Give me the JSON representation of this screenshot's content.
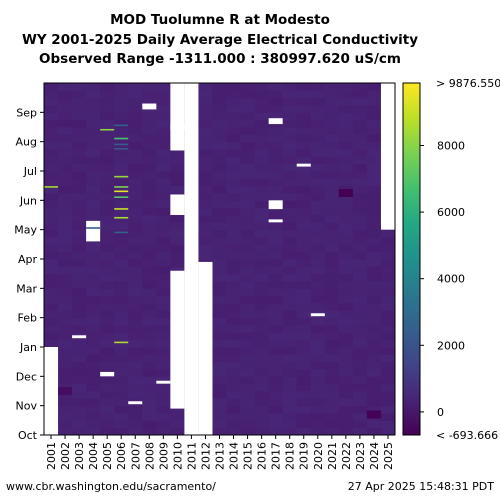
{
  "chart_data": {
    "type": "heatmap",
    "title_lines": [
      "MOD Tuolumne R at Modesto",
      "WY 2001-2025 Daily Average Electrical Conductivity",
      "Observed Range -1311.000 : 380997.620 uS/cm"
    ],
    "x_categories": [
      "2001",
      "2002",
      "2003",
      "2004",
      "2005",
      "2006",
      "2007",
      "2008",
      "2009",
      "2010",
      "2011",
      "2012",
      "2013",
      "2014",
      "2015",
      "2016",
      "2017",
      "2018",
      "2019",
      "2020",
      "2021",
      "2022",
      "2023",
      "2024",
      "2025"
    ],
    "y_categories": [
      "Oct",
      "Nov",
      "Dec",
      "Jan",
      "Feb",
      "Mar",
      "Apr",
      "May",
      "Jun",
      "Jul",
      "Aug",
      "Sep"
    ],
    "colorbar": {
      "colormap": "viridis",
      "vmin": -693.666,
      "vmax": 9876.55,
      "ticks": [
        0,
        2000,
        4000,
        6000,
        8000
      ],
      "tick_labels": [
        "0",
        "2000",
        "4000",
        "6000",
        "8000"
      ],
      "min_label": "< -693.666",
      "max_label": "> 9876.550"
    },
    "base_value_range": [
      180,
      420
    ],
    "missing_periods": [
      {
        "year": "2001",
        "from_month": 0,
        "to_month": 3.0
      },
      {
        "year": "2010",
        "from_month": 9.7,
        "to_month": 12
      },
      {
        "year": "2010",
        "from_month": 7.5,
        "to_month": 8.2
      },
      {
        "year": "2010",
        "from_month": 0.9,
        "to_month": 5.6
      },
      {
        "year": "2011",
        "from_month": 0,
        "to_month": 12
      },
      {
        "year": "2012",
        "from_month": 0,
        "to_month": 5.9
      },
      {
        "year": "2025",
        "from_month": 7.0,
        "to_month": 12
      }
    ],
    "missing_short": [
      {
        "year": "2004",
        "from_month": 6.6,
        "to_month": 7.3
      },
      {
        "year": "2008",
        "from_month": 11.1,
        "to_month": 11.3
      },
      {
        "year": "2010",
        "from_month": 10.4,
        "to_month": 10.6
      },
      {
        "year": "2017",
        "from_month": 10.6,
        "to_month": 10.8
      },
      {
        "year": "2017",
        "from_month": 7.7,
        "to_month": 8.0
      },
      {
        "year": "2017",
        "from_month": 7.25,
        "to_month": 7.35
      },
      {
        "year": "2019",
        "from_month": 9.15,
        "to_month": 9.25
      },
      {
        "year": "2020",
        "from_month": 4.05,
        "to_month": 4.15
      },
      {
        "year": "2005",
        "from_month": 2.0,
        "to_month": 2.15
      },
      {
        "year": "2007",
        "from_month": 1.05,
        "to_month": 1.15
      },
      {
        "year": "2009",
        "from_month": 1.75,
        "to_month": 1.85
      },
      {
        "year": "2003",
        "from_month": 3.3,
        "to_month": 3.4
      }
    ],
    "high_values": [
      {
        "year": "2001",
        "month": 8.45,
        "value": 8400
      },
      {
        "year": "2005",
        "month": 10.4,
        "value": 8000
      },
      {
        "year": "2006",
        "month": 10.55,
        "value": 2600
      },
      {
        "year": "2006",
        "month": 10.1,
        "value": 6800
      },
      {
        "year": "2006",
        "month": 9.9,
        "value": 2400
      },
      {
        "year": "2006",
        "month": 9.75,
        "value": 2200
      },
      {
        "year": "2006",
        "month": 8.8,
        "value": 8200
      },
      {
        "year": "2006",
        "month": 8.45,
        "value": 7800
      },
      {
        "year": "2006",
        "month": 8.3,
        "value": 9500
      },
      {
        "year": "2006",
        "month": 8.1,
        "value": 7000
      },
      {
        "year": "2006",
        "month": 7.7,
        "value": 9000
      },
      {
        "year": "2006",
        "month": 7.4,
        "value": 8500
      },
      {
        "year": "2006",
        "month": 6.9,
        "value": 2600
      },
      {
        "year": "2006",
        "month": 3.15,
        "value": 8600
      },
      {
        "year": "2004",
        "month": 7.05,
        "value": 2400
      },
      {
        "year": "2022",
        "month": 8.25,
        "value": -690
      },
      {
        "year": "2024",
        "month": 0.7,
        "value": -620
      },
      {
        "year": "2002",
        "month": 1.5,
        "value": -300
      }
    ]
  },
  "footer": {
    "source": "www.cbr.washington.edu/sacramento/",
    "timestamp": "27 Apr 2025 15:48:31 PDT"
  }
}
